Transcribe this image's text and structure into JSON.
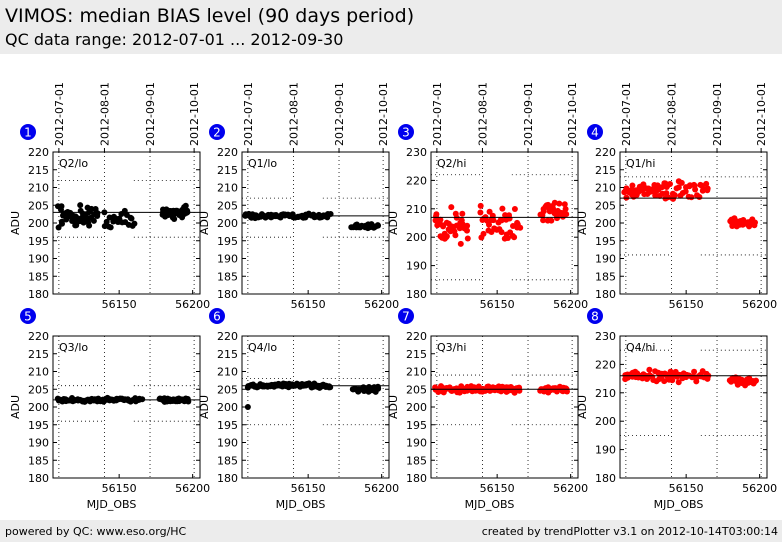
{
  "header": {
    "title": "VIMOS: median BIAS level (90 days period)",
    "subtitle": "QC data range: 2012-07-01 ... 2012-09-30"
  },
  "footer": {
    "left": "powered by QC: www.eso.org/HC",
    "right": "created by trendPlotter v3.1 on 2012-10-14T03:00:14"
  },
  "date_axis": {
    "labels": [
      "2012-07-01",
      "2012-08-01",
      "2012-09-01",
      "2012-10-01"
    ],
    "mjd": [
      56109,
      56140,
      56171,
      56201
    ]
  },
  "colors": {
    "lo": "#000000",
    "hi": "#ff0000",
    "badge": "#0000ee"
  },
  "chart_data": [
    {
      "type": "scatter",
      "panel": "1",
      "label": "Q2/lo",
      "ylabel": "ADU",
      "xlabel": "",
      "ylim": [
        180,
        220
      ],
      "yticks": [
        180,
        185,
        190,
        195,
        200,
        205,
        210,
        215,
        220
      ],
      "xlim": [
        56105,
        56205
      ],
      "xticks": [
        56150,
        56200
      ],
      "series_color": "lo",
      "mean": 203,
      "thresholds": [
        196,
        212
      ],
      "band_x": [
        56140,
        56160
      ],
      "segments": [
        {
          "x0": 56109,
          "x1": 56135,
          "center": 202,
          "spread": 3.5,
          "n": 50
        },
        {
          "x0": 56140,
          "x1": 56160,
          "center": 201,
          "spread": 3.5,
          "n": 22
        },
        {
          "x0": 56179,
          "x1": 56197,
          "center": 203,
          "spread": 2,
          "n": 36
        }
      ]
    },
    {
      "type": "scatter",
      "panel": "2",
      "label": "Q1/lo",
      "ylabel": "ADU",
      "xlabel": "",
      "ylim": [
        180,
        220
      ],
      "yticks": [
        180,
        185,
        190,
        195,
        200,
        205,
        210,
        215,
        220
      ],
      "xlim": [
        56105,
        56205
      ],
      "xticks": [
        56150,
        56200
      ],
      "series_color": "lo",
      "mean": 202,
      "thresholds": [
        196,
        207
      ],
      "band_x": [
        56140,
        56160
      ],
      "segments": [
        {
          "x0": 56107,
          "x1": 56165,
          "center": 202,
          "spread": 0.8,
          "n": 70
        },
        {
          "x0": 56180,
          "x1": 56198,
          "center": 199,
          "spread": 0.8,
          "n": 30
        }
      ]
    },
    {
      "type": "scatter",
      "panel": "3",
      "label": "Q2/hi",
      "ylabel": "ADU",
      "xlabel": "",
      "ylim": [
        180,
        230
      ],
      "yticks": [
        180,
        190,
        200,
        210,
        220,
        230
      ],
      "xlim": [
        56105,
        56205
      ],
      "xticks": [
        56150,
        56200
      ],
      "series_color": "hi",
      "mean": 207,
      "thresholds": [
        185,
        222
      ],
      "band_x": [
        56140,
        56160
      ],
      "segments": [
        {
          "x0": 56108,
          "x1": 56130,
          "center": 204,
          "spread": 8,
          "n": 40
        },
        {
          "x0": 56138,
          "x1": 56165,
          "center": 205,
          "spread": 8,
          "n": 40
        },
        {
          "x0": 56180,
          "x1": 56197,
          "center": 209,
          "spread": 5,
          "n": 30
        }
      ]
    },
    {
      "type": "scatter",
      "panel": "4",
      "label": "Q1/hi",
      "ylabel": "ADU",
      "xlabel": "",
      "ylim": [
        180,
        220
      ],
      "yticks": [
        180,
        185,
        190,
        195,
        200,
        205,
        210,
        215,
        220
      ],
      "xlim": [
        56105,
        56205
      ],
      "xticks": [
        56150,
        56200
      ],
      "series_color": "hi",
      "mean": 207,
      "thresholds": [
        191,
        213
      ],
      "band_x": [
        56140,
        56160
      ],
      "segments": [
        {
          "x0": 56108,
          "x1": 56138,
          "center": 209,
          "spread": 2.5,
          "n": 45
        },
        {
          "x0": 56138,
          "x1": 56165,
          "center": 209,
          "spread": 3,
          "n": 30
        },
        {
          "x0": 56180,
          "x1": 56197,
          "center": 200,
          "spread": 1.5,
          "n": 30
        }
      ]
    },
    {
      "type": "scatter",
      "panel": "5",
      "label": "Q3/lo",
      "ylabel": "ADU",
      "xlabel": "MJD_OBS",
      "ylim": [
        180,
        220
      ],
      "yticks": [
        180,
        185,
        190,
        195,
        200,
        205,
        210,
        215,
        220
      ],
      "xlim": [
        56105,
        56205
      ],
      "xticks": [
        56150,
        56200
      ],
      "series_color": "lo",
      "mean": 202,
      "thresholds": [
        196,
        206
      ],
      "band_x": [
        56140,
        56160
      ],
      "segments": [
        {
          "x0": 56108,
          "x1": 56165,
          "center": 202,
          "spread": 0.6,
          "n": 80
        },
        {
          "x0": 56178,
          "x1": 56197,
          "center": 202,
          "spread": 0.6,
          "n": 40
        }
      ]
    },
    {
      "type": "scatter",
      "panel": "6",
      "label": "Q4/lo",
      "ylabel": "ADU",
      "xlabel": "MJD_OBS",
      "ylim": [
        180,
        220
      ],
      "yticks": [
        180,
        185,
        190,
        195,
        200,
        205,
        210,
        215,
        220
      ],
      "xlim": [
        56105,
        56205
      ],
      "xticks": [
        56150,
        56200
      ],
      "series_color": "lo",
      "mean": 206,
      "thresholds": [
        195,
        208
      ],
      "band_x": [
        56140,
        56160
      ],
      "outliers": [
        [
          56109,
          200
        ]
      ],
      "segments": [
        {
          "x0": 56109,
          "x1": 56165,
          "center": 206,
          "spread": 0.7,
          "n": 80
        },
        {
          "x0": 56180,
          "x1": 56198,
          "center": 205,
          "spread": 1,
          "n": 30
        }
      ]
    },
    {
      "type": "scatter",
      "panel": "7",
      "label": "Q3/hi",
      "ylabel": "ADU",
      "xlabel": "MJD_OBS",
      "ylim": [
        180,
        220
      ],
      "yticks": [
        180,
        185,
        190,
        195,
        200,
        205,
        210,
        215,
        220
      ],
      "xlim": [
        56105,
        56205
      ],
      "xticks": [
        56150,
        56200
      ],
      "series_color": "hi",
      "mean": 205,
      "thresholds": [
        195,
        209
      ],
      "band_x": [
        56140,
        56160
      ],
      "segments": [
        {
          "x0": 56108,
          "x1": 56165,
          "center": 205,
          "spread": 1.2,
          "n": 90
        },
        {
          "x0": 56180,
          "x1": 56198,
          "center": 205,
          "spread": 1,
          "n": 40
        }
      ]
    },
    {
      "type": "scatter",
      "panel": "8",
      "label": "Q4/hi",
      "ylabel": "ADU",
      "xlabel": "MJD_OBS",
      "ylim": [
        180,
        230
      ],
      "yticks": [
        180,
        190,
        200,
        210,
        220,
        230
      ],
      "xlim": [
        56105,
        56205
      ],
      "xticks": [
        56150,
        56200
      ],
      "series_color": "hi",
      "mean": 216,
      "thresholds": [
        195,
        225
      ],
      "band_x": [
        56140,
        56160
      ],
      "segments": [
        {
          "x0": 56108,
          "x1": 56165,
          "center": 216,
          "spread": 2.5,
          "n": 70
        },
        {
          "x0": 56180,
          "x1": 56197,
          "center": 214,
          "spread": 2,
          "n": 35
        }
      ]
    }
  ]
}
